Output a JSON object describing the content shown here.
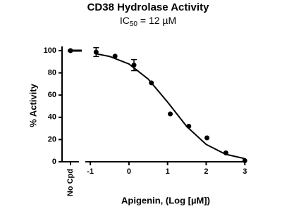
{
  "chart_data": {
    "type": "scatter",
    "title": "CD38 Hydrolase Activity",
    "subtitle": {
      "main": "IC",
      "sub": "50",
      "rest": " = 12 µM"
    },
    "x_label": "Apigenin, (Log [µM])",
    "y_label": "% Activity",
    "xlim": [
      -1.13,
      3.05
    ],
    "xticks": [
      -1,
      0,
      1,
      2,
      3
    ],
    "ylim": [
      0,
      100
    ],
    "yticks": [
      0,
      20,
      40,
      60,
      80,
      100
    ],
    "color": "#000000",
    "x": [
      -0.85,
      -0.36,
      0.13,
      0.58,
      1.07,
      1.55,
      2.02,
      2.51,
      3.0
    ],
    "values": [
      98.7,
      95,
      87,
      71,
      43,
      32,
      21.5,
      8,
      1
    ],
    "errors": [
      4,
      null,
      5,
      null,
      null,
      null,
      null,
      null,
      null
    ],
    "fit": {
      "x": [
        -0.9,
        -0.5,
        0,
        0.5,
        1,
        1.5,
        2,
        2.5,
        3
      ],
      "values": [
        97.5,
        94.8,
        88,
        74.4,
        53.7,
        31.6,
        15.6,
        6.8,
        2.8
      ]
    },
    "control": {
      "category": "No Cpd",
      "value": 100
    }
  }
}
